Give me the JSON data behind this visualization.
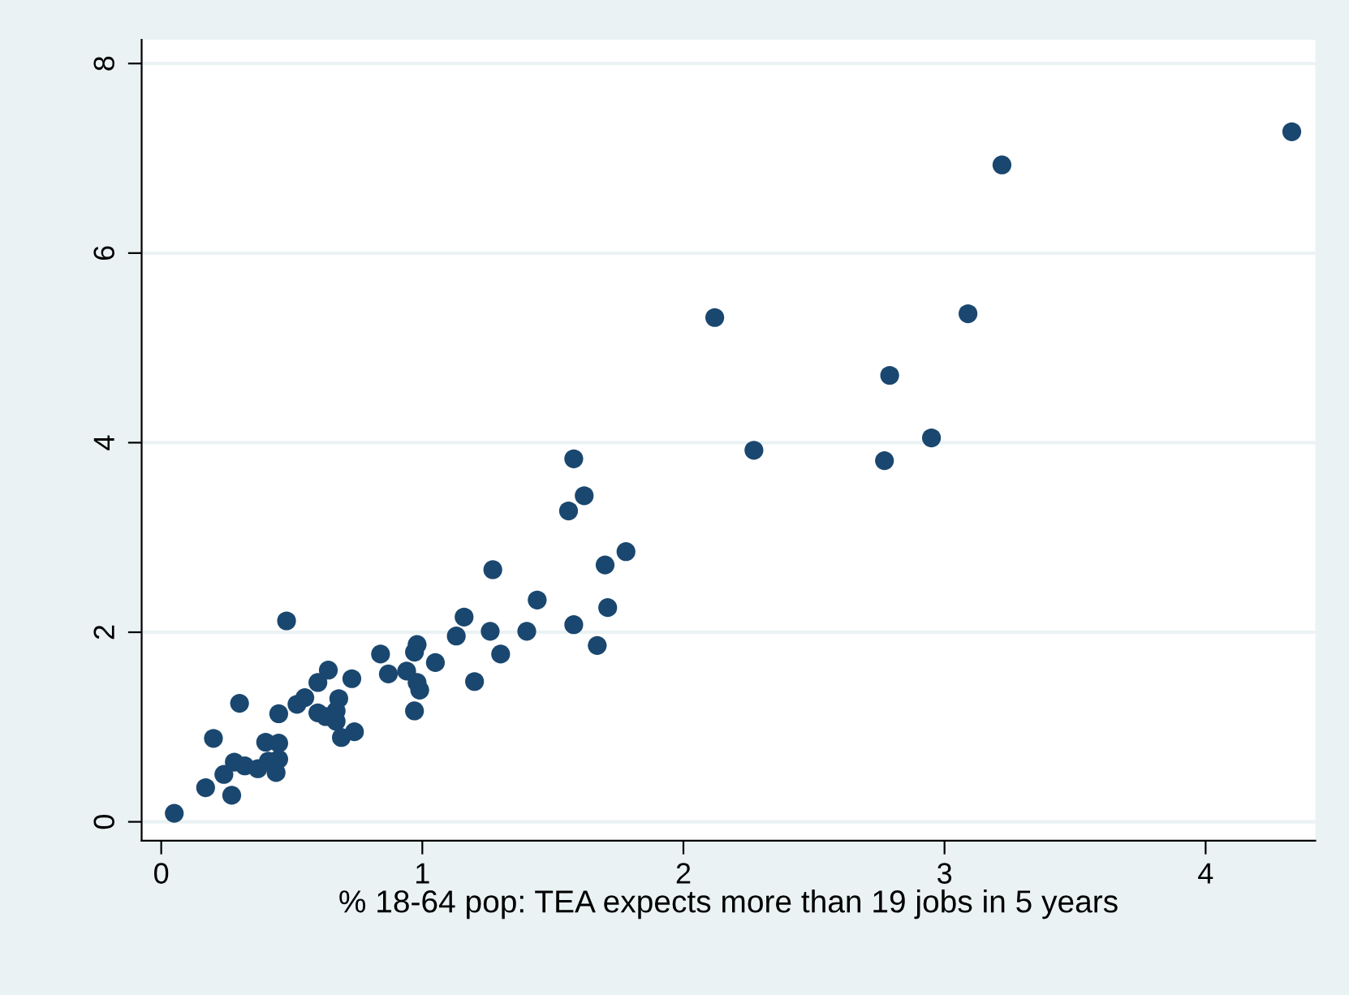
{
  "chart_data": {
    "type": "scatter",
    "xlabel": "% 18-64 pop: TEA expects more than 19 jobs in 5 years",
    "x": [
      0.05,
      0.17,
      0.2,
      0.24,
      0.27,
      0.28,
      0.3,
      0.32,
      0.37,
      0.4,
      0.41,
      0.44,
      0.45,
      0.45,
      0.45,
      0.48,
      0.52,
      0.55,
      0.6,
      0.6,
      0.63,
      0.64,
      0.67,
      0.68,
      0.67,
      0.69,
      0.73,
      0.74,
      0.84,
      0.87,
      0.94,
      0.97,
      0.97,
      0.98,
      0.98,
      0.99,
      1.05,
      1.13,
      1.16,
      1.2,
      1.26,
      1.27,
      1.3,
      1.4,
      1.44,
      1.56,
      1.58,
      1.58,
      1.62,
      1.67,
      1.7,
      1.71,
      1.78,
      2.12,
      2.27,
      2.77,
      2.79,
      2.95,
      3.09,
      3.22,
      4.33
    ],
    "series": [
      {
        "color": "#1a476f",
        "values": [
          0.09,
          0.36,
          0.88,
          0.5,
          0.28,
          0.63,
          1.25,
          0.59,
          0.56,
          0.84,
          0.64,
          0.52,
          0.83,
          0.66,
          1.14,
          2.12,
          1.24,
          1.31,
          1.15,
          1.47,
          1.11,
          1.6,
          1.17,
          1.3,
          1.06,
          0.89,
          1.51,
          0.95,
          1.77,
          1.56,
          1.59,
          1.79,
          1.17,
          1.87,
          1.47,
          1.39,
          1.68,
          1.96,
          2.16,
          1.48,
          2.01,
          2.66,
          1.77,
          2.01,
          2.34,
          3.28,
          2.08,
          3.83,
          3.44,
          1.86,
          2.71,
          2.26,
          2.85,
          5.32,
          3.92,
          3.81,
          4.71,
          4.05,
          5.36,
          6.93,
          7.28
        ]
      }
    ],
    "xlim": [
      -0.075,
      4.42
    ],
    "ylim": [
      -0.2,
      8.25
    ],
    "xticks": [
      0,
      1,
      2,
      3,
      4
    ],
    "yticks": [
      0,
      2,
      4,
      6,
      8
    ],
    "grid": "y",
    "marker": "circle"
  }
}
